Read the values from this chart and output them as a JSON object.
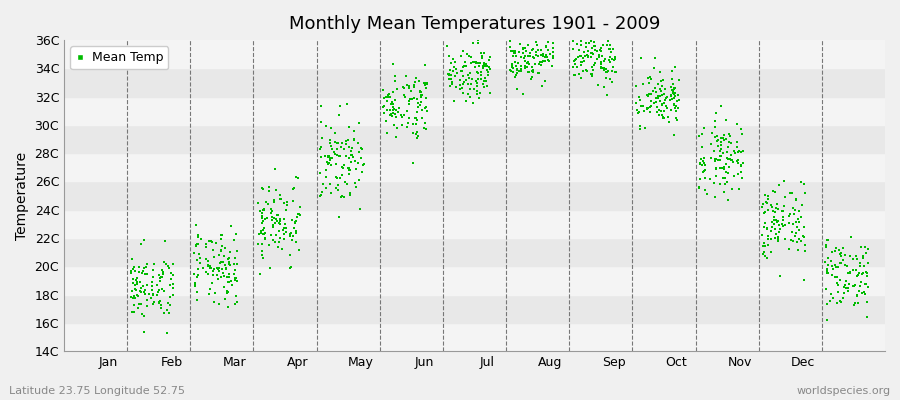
{
  "title": "Monthly Mean Temperatures 1901 - 2009",
  "ylabel": "Temperature",
  "subtitle_left": "Latitude 23.75 Longitude 52.75",
  "subtitle_right": "worldspecies.org",
  "ylim": [
    14,
    36
  ],
  "yticks": [
    14,
    16,
    18,
    20,
    22,
    24,
    26,
    28,
    30,
    32,
    34,
    36
  ],
  "ytick_labels": [
    "14C",
    "16C",
    "18C",
    "20C",
    "22C",
    "24C",
    "26C",
    "28C",
    "30C",
    "32C",
    "34C",
    "36C"
  ],
  "months": [
    "Jan",
    "Feb",
    "Mar",
    "Apr",
    "May",
    "Jun",
    "Jul",
    "Aug",
    "Sep",
    "Oct",
    "Nov",
    "Dec"
  ],
  "monthly_means": [
    18.5,
    19.8,
    23.2,
    27.5,
    31.5,
    33.8,
    34.8,
    34.6,
    31.8,
    27.8,
    23.0,
    19.5
  ],
  "monthly_stds": [
    1.2,
    1.3,
    1.5,
    1.5,
    1.2,
    1.0,
    0.9,
    0.9,
    1.1,
    1.3,
    1.4,
    1.3
  ],
  "n_years": 109,
  "dot_color": "#00bb00",
  "dot_size": 2.5,
  "bg_color": "#f0f0f0",
  "plot_bg_light": "#f4f4f4",
  "plot_bg_dark": "#e8e8e8",
  "band_edges": [
    14,
    16,
    18,
    20,
    22,
    24,
    26,
    28,
    30,
    32,
    34,
    36
  ],
  "grid_color": "#777777",
  "title_fontsize": 13,
  "axis_fontsize": 9,
  "legend_fontsize": 9,
  "seed": 42,
  "xlim": [
    0,
    13
  ],
  "n_month_divisions": 13,
  "month_tick_positions": [
    0.7,
    1.7,
    2.7,
    3.7,
    4.7,
    5.7,
    6.7,
    7.7,
    8.7,
    9.7,
    10.7,
    11.7
  ],
  "month_boundaries": [
    1,
    2,
    3,
    4,
    5,
    6,
    7,
    8,
    9,
    10,
    11,
    12
  ]
}
